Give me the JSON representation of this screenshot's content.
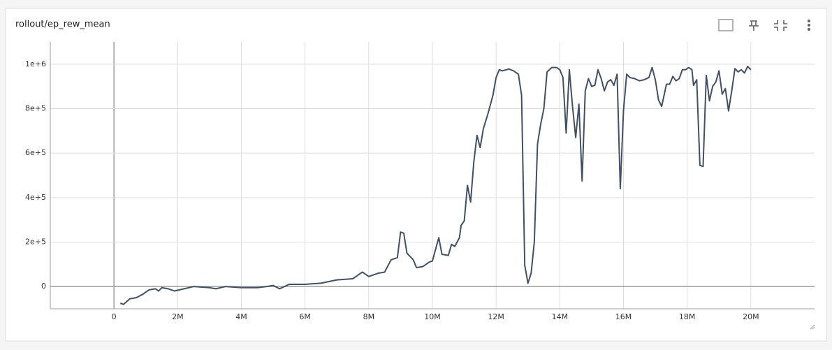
{
  "chart_data": {
    "type": "line",
    "title": "rollout/ep_rew_mean",
    "x": [
      200000,
      300000,
      500000,
      700000,
      900000,
      1100000,
      1300000,
      1400000,
      1500000,
      1700000,
      1900000,
      2200000,
      2500000,
      3000000,
      3200000,
      3500000,
      4000000,
      4500000,
      4800000,
      5000000,
      5200000,
      5500000,
      6000000,
      6500000,
      7000000,
      7500000,
      7800000,
      8000000,
      8300000,
      8500000,
      8700000,
      8900000,
      9000000,
      9100000,
      9200000,
      9400000,
      9500000,
      9700000,
      9900000,
      10000000,
      10200000,
      10300000,
      10500000,
      10600000,
      10700000,
      10850000,
      10900000,
      11000000,
      11100000,
      11200000,
      11300000,
      11400000,
      11500000,
      11600000,
      11750000,
      11900000,
      12000000,
      12100000,
      12200000,
      12400000,
      12550000,
      12700000,
      12800000,
      12900000,
      13000000,
      13100000,
      13200000,
      13300000,
      13400000,
      13500000,
      13600000,
      13750000,
      13900000,
      14000000,
      14100000,
      14200000,
      14300000,
      14400000,
      14500000,
      14600000,
      14700000,
      14800000,
      14900000,
      15000000,
      15100000,
      15200000,
      15300000,
      15400000,
      15500000,
      15600000,
      15700000,
      15800000,
      15900000,
      16000000,
      16100000,
      16200000,
      16350000,
      16500000,
      16650000,
      16800000,
      16900000,
      17000000,
      17100000,
      17200000,
      17350000,
      17450000,
      17550000,
      17650000,
      17750000,
      17850000,
      17950000,
      18050000,
      18150000,
      18200000,
      18300000,
      18400000,
      18500000,
      18600000,
      18700000,
      18800000,
      18900000,
      19000000,
      19100000,
      19200000,
      19300000,
      19400000,
      19500000,
      19600000,
      19700000,
      19800000,
      19900000,
      20000000
    ],
    "series": [
      {
        "name": "rollout/ep_rew_mean",
        "color": "#425066",
        "values": [
          -75000,
          -80000,
          -55000,
          -50000,
          -35000,
          -15000,
          -10000,
          -20000,
          -5000,
          -10000,
          -20000,
          -10000,
          0,
          -5000,
          -10000,
          0,
          -5000,
          -5000,
          0,
          5000,
          -10000,
          10000,
          10000,
          15000,
          30000,
          35000,
          65000,
          45000,
          60000,
          65000,
          120000,
          130000,
          245000,
          240000,
          150000,
          120000,
          85000,
          90000,
          110000,
          115000,
          220000,
          145000,
          140000,
          190000,
          180000,
          220000,
          275000,
          295000,
          455000,
          380000,
          560000,
          680000,
          625000,
          710000,
          780000,
          860000,
          940000,
          975000,
          970000,
          978000,
          970000,
          955000,
          860000,
          95000,
          15000,
          60000,
          200000,
          640000,
          730000,
          800000,
          965000,
          985000,
          985000,
          975000,
          940000,
          690000,
          975000,
          810000,
          670000,
          820000,
          475000,
          880000,
          935000,
          900000,
          905000,
          975000,
          935000,
          880000,
          920000,
          930000,
          905000,
          955000,
          440000,
          790000,
          955000,
          940000,
          935000,
          925000,
          930000,
          940000,
          985000,
          930000,
          840000,
          810000,
          910000,
          910000,
          945000,
          925000,
          935000,
          975000,
          975000,
          985000,
          975000,
          905000,
          930000,
          545000,
          540000,
          950000,
          835000,
          900000,
          920000,
          970000,
          865000,
          890000,
          790000,
          880000,
          980000,
          965000,
          975000,
          960000,
          990000,
          975000
        ]
      }
    ],
    "xlim": [
      -2000000,
      22000000
    ],
    "xticks": [
      0,
      {
        "value": 2000000,
        "label": "2M"
      },
      {
        "value": 4000000,
        "label": "4M"
      },
      {
        "value": 6000000,
        "label": "6M"
      },
      {
        "value": 8000000,
        "label": "8M"
      },
      {
        "value": 10000000,
        "label": "10M"
      },
      {
        "value": 12000000,
        "label": "12M"
      },
      {
        "value": 14000000,
        "label": "14M"
      },
      {
        "value": 16000000,
        "label": "16M"
      },
      {
        "value": 18000000,
        "label": "18M"
      },
      {
        "value": 20000000,
        "label": "20M"
      }
    ],
    "ylim": [
      -100000,
      1100000
    ],
    "yticks": [
      0,
      {
        "value": 200000,
        "label": "2e+5"
      },
      {
        "value": 400000,
        "label": "4e+5"
      },
      {
        "value": 600000,
        "label": "6e+5"
      },
      {
        "value": 800000,
        "label": "8e+5"
      },
      {
        "value": 1000000,
        "label": "1e+6"
      }
    ],
    "grid": true
  }
}
